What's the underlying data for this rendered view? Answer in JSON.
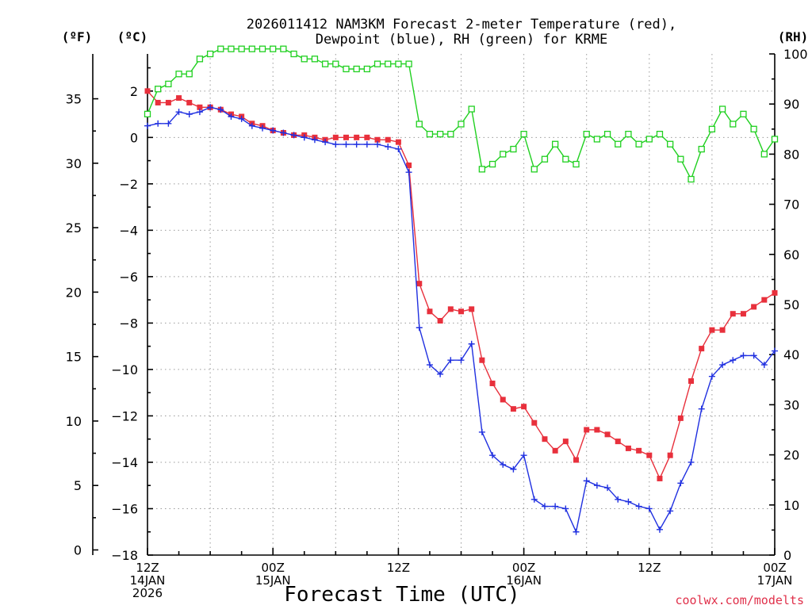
{
  "chart_data": {
    "type": "line",
    "title_line1": "2026011412 NAM3KM Forecast 2-meter Temperature (red),",
    "title_line2": "Dewpoint (blue), RH (green) for KRME",
    "xlabel": "Forecast Time (UTC)",
    "credit": "coolwx.com/modelts",
    "unit_f": "(ºF)",
    "unit_c": "(ºC)",
    "unit_rh": "(RH)",
    "ylim_c": [
      -18,
      3.6
    ],
    "ylim_rh": [
      0,
      100
    ],
    "xlim_hours": [
      0,
      60
    ],
    "yticks_c": [
      "2",
      "0",
      "−2",
      "−4",
      "−6",
      "−8",
      "−10",
      "−12",
      "−14",
      "−16",
      "−18"
    ],
    "yticks_c_values": [
      2,
      0,
      -2,
      -4,
      -6,
      -8,
      -10,
      -12,
      -14,
      -16,
      -18
    ],
    "yticks_f": [
      "35",
      "30",
      "25",
      "20",
      "15",
      "10",
      "5",
      "0"
    ],
    "yticks_f_values": [
      35,
      30,
      25,
      20,
      15,
      10,
      5,
      0
    ],
    "yticks_rh": [
      "100",
      "90",
      "80",
      "70",
      "60",
      "50",
      "40",
      "30",
      "20",
      "10",
      "0"
    ],
    "yticks_rh_values": [
      100,
      90,
      80,
      70,
      60,
      50,
      40,
      30,
      20,
      10,
      0
    ],
    "xticks": [
      {
        "hour": 0,
        "line1": "12Z",
        "line2": "14JAN",
        "line3": "2026"
      },
      {
        "hour": 12,
        "line1": "00Z",
        "line2": "15JAN",
        "line3": ""
      },
      {
        "hour": 24,
        "line1": "12Z",
        "line2": "",
        "line3": ""
      },
      {
        "hour": 36,
        "line1": "00Z",
        "line2": "16JAN",
        "line3": ""
      },
      {
        "hour": 48,
        "line1": "12Z",
        "line2": "",
        "line3": ""
      },
      {
        "hour": 60,
        "line1": "00Z",
        "line2": "17JAN",
        "line3": ""
      }
    ],
    "x_hours": [
      0,
      1,
      2,
      3,
      4,
      5,
      6,
      7,
      8,
      9,
      10,
      11,
      12,
      13,
      14,
      15,
      16,
      17,
      18,
      19,
      20,
      21,
      22,
      23,
      24,
      25,
      26,
      27,
      28,
      29,
      30,
      31,
      32,
      33,
      34,
      35,
      36,
      37,
      38,
      39,
      40,
      41,
      42,
      43,
      44,
      45,
      46,
      47,
      48,
      49,
      50,
      51,
      52,
      53,
      54,
      55,
      56,
      57,
      58,
      59,
      60
    ],
    "series": [
      {
        "name": "Temperature",
        "color": "#e8303c",
        "marker": "filled-square",
        "values": [
          2.0,
          1.5,
          1.5,
          1.7,
          1.5,
          1.3,
          1.3,
          1.2,
          1.0,
          0.9,
          0.6,
          0.5,
          0.3,
          0.2,
          0.1,
          0.1,
          0.0,
          -0.1,
          0.0,
          0.0,
          0.0,
          0.0,
          -0.1,
          -0.1,
          -0.2,
          -1.2,
          -6.3,
          -7.5,
          -7.9,
          -7.4,
          -7.5,
          -7.4,
          -9.6,
          -10.6,
          -11.3,
          -11.7,
          -11.6,
          -12.3,
          -13.0,
          -13.5,
          -13.1,
          -13.9,
          -12.6,
          -12.6,
          -12.8,
          -13.1,
          -13.4,
          -13.5,
          -13.7,
          -14.7,
          -13.7,
          -12.1,
          -10.5,
          -9.1,
          -8.3,
          -8.3,
          -7.6,
          -7.6,
          -7.3,
          -7.0,
          -6.7
        ]
      },
      {
        "name": "Dewpoint",
        "color": "#2030e0",
        "marker": "plus",
        "values": [
          0.5,
          0.6,
          0.6,
          1.1,
          1.0,
          1.1,
          1.3,
          1.2,
          0.9,
          0.8,
          0.5,
          0.4,
          0.3,
          0.2,
          0.1,
          0.0,
          -0.1,
          -0.2,
          -0.3,
          -0.3,
          -0.3,
          -0.3,
          -0.3,
          -0.4,
          -0.5,
          -1.5,
          -8.2,
          -9.8,
          -10.2,
          -9.6,
          -9.6,
          -8.9,
          -12.7,
          -13.7,
          -14.1,
          -14.3,
          -13.7,
          -15.6,
          -15.9,
          -15.9,
          -16.0,
          -17.0,
          -14.8,
          -15.0,
          -15.1,
          -15.6,
          -15.7,
          -15.9,
          -16.0,
          -16.9,
          -16.1,
          -14.9,
          -14.0,
          -11.7,
          -10.3,
          -9.8,
          -9.6,
          -9.4,
          -9.4,
          -9.8,
          -9.2
        ]
      },
      {
        "name": "RH",
        "color": "#20d020",
        "marker": "open-square",
        "axis": "right",
        "values": [
          88,
          93,
          94,
          96,
          96,
          99,
          100,
          101,
          101,
          101,
          101,
          101,
          101,
          101,
          100,
          99,
          99,
          98,
          98,
          97,
          97,
          97,
          98,
          98,
          98,
          98,
          86,
          84,
          84,
          84,
          86,
          89,
          77,
          78,
          80,
          81,
          84,
          77,
          79,
          82,
          79,
          78,
          84,
          83,
          84,
          82,
          84,
          82,
          83,
          84,
          82,
          79,
          75,
          81,
          85,
          89,
          86,
          88,
          85,
          80,
          83
        ]
      }
    ]
  }
}
